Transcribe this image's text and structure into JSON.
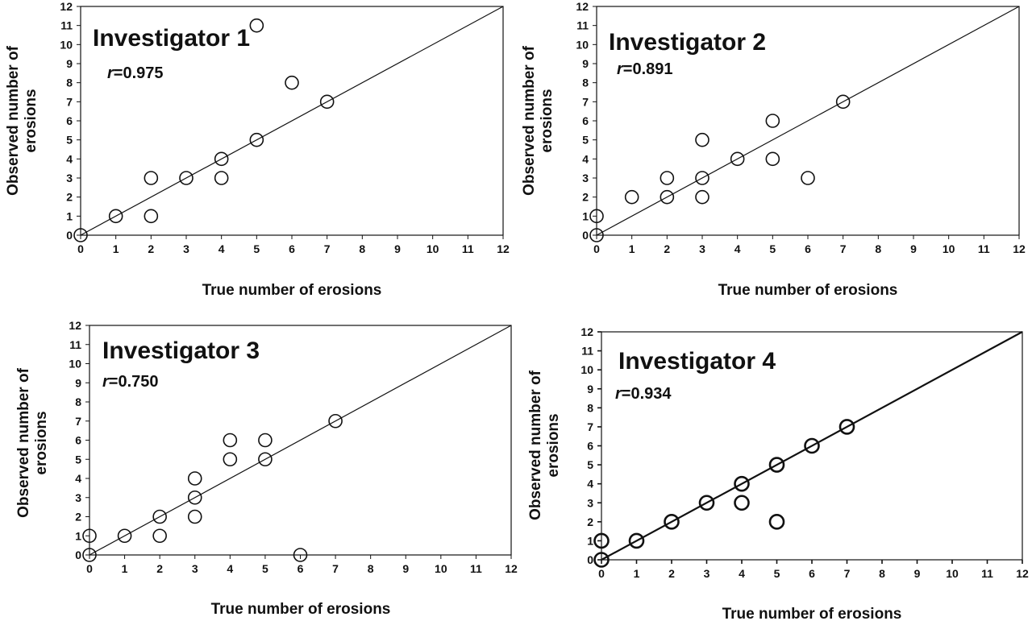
{
  "chart_data": [
    {
      "type": "scatter",
      "title": "Investigator 1",
      "annotation_symbol": "r",
      "annotation_value": "=0.975",
      "xlabel": "True number of erosions",
      "ylabel_lines": [
        "Observed number of",
        "erosions"
      ],
      "xlim": [
        0,
        12
      ],
      "ylim": [
        0,
        12
      ],
      "xticks": [
        "0",
        "1",
        "2",
        "3",
        "4",
        "5",
        "6",
        "7",
        "8",
        "9",
        "10",
        "11",
        "12"
      ],
      "yticks": [
        "0",
        "1",
        "2",
        "3",
        "4",
        "5",
        "6",
        "7",
        "8",
        "9",
        "10",
        "11",
        "12"
      ],
      "identity_line": true,
      "points": [
        [
          0,
          0
        ],
        [
          1,
          1
        ],
        [
          2,
          1
        ],
        [
          2,
          3
        ],
        [
          3,
          3
        ],
        [
          4,
          3
        ],
        [
          4,
          4
        ],
        [
          5,
          5
        ],
        [
          5,
          11
        ],
        [
          6,
          8
        ],
        [
          7,
          7
        ]
      ]
    },
    {
      "type": "scatter",
      "title": "Investigator 2",
      "annotation_symbol": "r",
      "annotation_value": "=0.891",
      "xlabel": "True number of erosions",
      "ylabel_lines": [
        "Observed number of",
        "erosions"
      ],
      "xlim": [
        0,
        12
      ],
      "ylim": [
        0,
        12
      ],
      "xticks": [
        "0",
        "1",
        "2",
        "3",
        "4",
        "5",
        "6",
        "7",
        "8",
        "9",
        "10",
        "11",
        "12"
      ],
      "yticks": [
        "0",
        "1",
        "2",
        "3",
        "4",
        "5",
        "6",
        "7",
        "8",
        "9",
        "10",
        "11",
        "12"
      ],
      "identity_line": true,
      "points": [
        [
          0,
          0
        ],
        [
          0,
          1
        ],
        [
          1,
          2
        ],
        [
          2,
          2
        ],
        [
          2,
          3
        ],
        [
          3,
          2
        ],
        [
          3,
          3
        ],
        [
          3,
          5
        ],
        [
          4,
          4
        ],
        [
          5,
          4
        ],
        [
          5,
          6
        ],
        [
          6,
          3
        ],
        [
          7,
          7
        ]
      ]
    },
    {
      "type": "scatter",
      "title": "Investigator 3",
      "annotation_symbol": "r",
      "annotation_value": "=0.750",
      "xlabel": "True number of erosions",
      "ylabel_lines": [
        "Observed number of",
        "erosions"
      ],
      "xlim": [
        0,
        12
      ],
      "ylim": [
        0,
        12
      ],
      "xticks": [
        "0",
        "1",
        "2",
        "3",
        "4",
        "5",
        "6",
        "7",
        "8",
        "9",
        "10",
        "11",
        "12"
      ],
      "yticks": [
        "0",
        "1",
        "2",
        "3",
        "4",
        "5",
        "6",
        "7",
        "8",
        "9",
        "10",
        "11",
        "12"
      ],
      "identity_line": true,
      "points": [
        [
          0,
          0
        ],
        [
          0,
          1
        ],
        [
          1,
          1
        ],
        [
          2,
          1
        ],
        [
          2,
          2
        ],
        [
          3,
          2
        ],
        [
          3,
          3
        ],
        [
          3,
          4
        ],
        [
          4,
          5
        ],
        [
          4,
          6
        ],
        [
          5,
          5
        ],
        [
          5,
          6
        ],
        [
          6,
          0
        ],
        [
          7,
          7
        ]
      ]
    },
    {
      "type": "scatter",
      "title": "Investigator 4",
      "annotation_symbol": "r",
      "annotation_value": "=0.934",
      "xlabel": "True number of erosions",
      "ylabel_lines": [
        "Observed number of",
        "erosions"
      ],
      "xlim": [
        0,
        12
      ],
      "ylim": [
        0,
        12
      ],
      "xticks": [
        "0",
        "1",
        "2",
        "3",
        "4",
        "5",
        "6",
        "7",
        "8",
        "9",
        "10",
        "11",
        "12"
      ],
      "yticks": [
        "0",
        "1",
        "2",
        "3",
        "4",
        "5",
        "6",
        "7",
        "8",
        "9",
        "10",
        "11",
        "12"
      ],
      "identity_line": true,
      "points": [
        [
          0,
          0
        ],
        [
          0,
          1
        ],
        [
          1,
          1
        ],
        [
          2,
          2
        ],
        [
          3,
          3
        ],
        [
          4,
          3
        ],
        [
          4,
          4
        ],
        [
          5,
          2
        ],
        [
          5,
          5
        ],
        [
          6,
          6
        ],
        [
          7,
          7
        ]
      ]
    }
  ]
}
